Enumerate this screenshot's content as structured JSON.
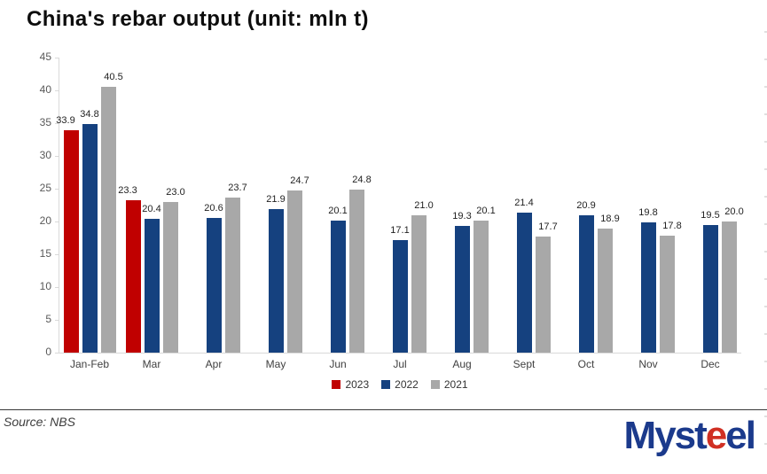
{
  "chart_data": {
    "type": "bar",
    "title": "China's rebar output (unit: mln t)",
    "categories": [
      "Jan-Feb",
      "Mar",
      "Apr",
      "May",
      "Jun",
      "Jul",
      "Aug",
      "Sept",
      "Oct",
      "Nov",
      "Dec"
    ],
    "series": [
      {
        "name": "2023",
        "color": "#c00000",
        "values": [
          33.9,
          23.3,
          null,
          null,
          null,
          null,
          null,
          null,
          null,
          null,
          null
        ]
      },
      {
        "name": "2022",
        "color": "#15417f",
        "values": [
          34.8,
          20.4,
          20.6,
          21.9,
          20.1,
          17.1,
          19.3,
          21.4,
          20.9,
          19.8,
          19.5
        ]
      },
      {
        "name": "2021",
        "color": "#a8a8a8",
        "values": [
          40.5,
          23.0,
          23.7,
          24.7,
          24.8,
          21.0,
          20.1,
          17.7,
          18.9,
          17.8,
          20.0
        ]
      }
    ],
    "ylim": [
      0,
      45
    ],
    "ytick_step": 5,
    "grid": false,
    "legend_position": "bottom",
    "data_labels": true,
    "label_decimals": 1
  },
  "footer": {
    "source_label": "Source: NBS"
  },
  "logo": {
    "part_myst": "Myst",
    "part_e1": "e",
    "part_e2": "e",
    "part_l": "l"
  }
}
